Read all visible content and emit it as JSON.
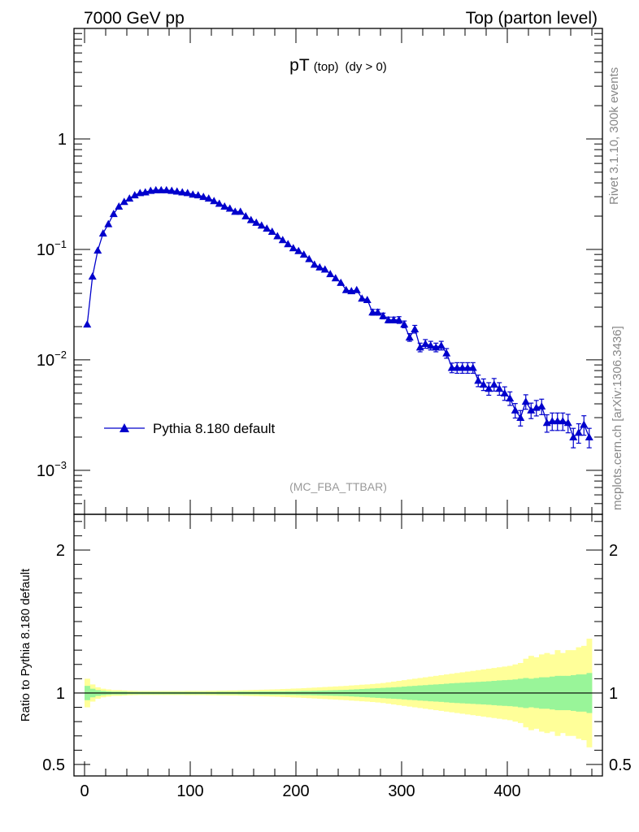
{
  "header": {
    "left": "7000 GeV pp",
    "right": "Top (parton level)"
  },
  "side_labels": {
    "rivet": "Rivet 3.1.10,  300k events",
    "mcplots": "mcplots.cern.ch [arXiv:1306.3436]"
  },
  "colors": {
    "series": "#0000cc",
    "band_inner": "#99f599",
    "band_outer": "#ffff99",
    "frame": "#000000",
    "side_text": "#888888"
  },
  "chart_data": [
    {
      "type": "line",
      "yscale": "log",
      "title": "pT",
      "title_sub": "(top)",
      "title_cut": "(dy > 0)",
      "watermark": "(MC_FBA_TTBAR)",
      "xlim": [
        -10,
        490
      ],
      "ylim": [
        0.0004,
        10
      ],
      "y_ticks": [
        {
          "value": 1,
          "base": "1",
          "exp": ""
        },
        {
          "value": 0.1,
          "base": "10",
          "exp": "−1"
        },
        {
          "value": 0.01,
          "base": "10",
          "exp": "−2"
        },
        {
          "value": 0.001,
          "base": "10",
          "exp": "−3"
        }
      ],
      "series": [
        {
          "name": "Pythia 8.180 default",
          "marker": "triangle",
          "x": [
            2.5,
            7.5,
            12.5,
            17.5,
            22.5,
            27.5,
            32.5,
            37.5,
            42.5,
            47.5,
            52.5,
            57.5,
            62.5,
            67.5,
            72.5,
            77.5,
            82.5,
            87.5,
            92.5,
            97.5,
            102.5,
            107.5,
            112.5,
            117.5,
            122.5,
            127.5,
            132.5,
            137.5,
            142.5,
            147.5,
            152.5,
            157.5,
            162.5,
            167.5,
            172.5,
            177.5,
            182.5,
            187.5,
            192.5,
            197.5,
            202.5,
            207.5,
            212.5,
            217.5,
            222.5,
            227.5,
            232.5,
            237.5,
            242.5,
            247.5,
            252.5,
            257.5,
            262.5,
            267.5,
            272.5,
            277.5,
            282.5,
            287.5,
            292.5,
            297.5,
            302.5,
            307.5,
            312.5,
            317.5,
            322.5,
            327.5,
            332.5,
            337.5,
            342.5,
            347.5,
            352.5,
            357.5,
            362.5,
            367.5,
            372.5,
            377.5,
            382.5,
            387.5,
            392.5,
            397.5,
            402.5,
            407.5,
            412.5,
            417.5,
            422.5,
            427.5,
            432.5,
            437.5,
            442.5,
            447.5,
            452.5,
            457.5,
            462.5,
            467.5,
            472.5,
            477.5
          ],
          "y": [
            0.021,
            0.057,
            0.098,
            0.14,
            0.17,
            0.21,
            0.245,
            0.27,
            0.29,
            0.31,
            0.325,
            0.33,
            0.34,
            0.345,
            0.345,
            0.345,
            0.34,
            0.335,
            0.33,
            0.325,
            0.315,
            0.31,
            0.3,
            0.29,
            0.275,
            0.26,
            0.245,
            0.235,
            0.22,
            0.22,
            0.2,
            0.185,
            0.175,
            0.165,
            0.155,
            0.145,
            0.132,
            0.122,
            0.112,
            0.103,
            0.097,
            0.09,
            0.082,
            0.073,
            0.069,
            0.066,
            0.06,
            0.055,
            0.05,
            0.043,
            0.042,
            0.043,
            0.036,
            0.035,
            0.027,
            0.027,
            0.025,
            0.023,
            0.023,
            0.023,
            0.021,
            0.016,
            0.019,
            0.013,
            0.014,
            0.0135,
            0.013,
            0.0135,
            0.0115,
            0.0085,
            0.0085,
            0.0085,
            0.0085,
            0.0085,
            0.0065,
            0.006,
            0.0055,
            0.006,
            0.0055,
            0.005,
            0.0045,
            0.0035,
            0.003,
            0.0042,
            0.0035,
            0.0037,
            0.0038,
            0.0027,
            0.0028,
            0.0028,
            0.0028,
            0.0027,
            0.002,
            0.0022,
            0.0026,
            0.002
          ],
          "yerr_rel": [
            0.02,
            0.02,
            0.02,
            0.02,
            0.02,
            0.02,
            0.02,
            0.02,
            0.02,
            0.02,
            0.02,
            0.02,
            0.02,
            0.02,
            0.02,
            0.02,
            0.02,
            0.02,
            0.02,
            0.02,
            0.02,
            0.02,
            0.02,
            0.02,
            0.02,
            0.02,
            0.02,
            0.02,
            0.02,
            0.02,
            0.03,
            0.03,
            0.03,
            0.03,
            0.03,
            0.03,
            0.03,
            0.03,
            0.03,
            0.03,
            0.03,
            0.03,
            0.03,
            0.04,
            0.04,
            0.04,
            0.04,
            0.04,
            0.04,
            0.05,
            0.05,
            0.05,
            0.05,
            0.05,
            0.06,
            0.06,
            0.06,
            0.06,
            0.06,
            0.07,
            0.07,
            0.08,
            0.08,
            0.09,
            0.09,
            0.09,
            0.09,
            0.09,
            0.1,
            0.1,
            0.11,
            0.11,
            0.11,
            0.11,
            0.12,
            0.12,
            0.13,
            0.13,
            0.13,
            0.14,
            0.14,
            0.15,
            0.16,
            0.15,
            0.16,
            0.16,
            0.16,
            0.18,
            0.18,
            0.18,
            0.18,
            0.19,
            0.2,
            0.2,
            0.2,
            0.2
          ]
        }
      ]
    },
    {
      "type": "area",
      "ylabel": "Ratio to Pythia 8.180 default",
      "xlim": [
        -10,
        490
      ],
      "ylim": [
        0.42,
        2.25
      ],
      "x_ticks": [
        0,
        100,
        200,
        300,
        400
      ],
      "y_ticks": [
        0.5,
        1,
        2
      ],
      "y_tick_labels": [
        "0.5",
        "1",
        "2"
      ],
      "reference_line": 1,
      "bands": {
        "x_edges_step": 5,
        "inner_half_width": [
          0.05,
          0.03,
          0.02,
          0.015,
          0.012,
          0.01,
          0.01,
          0.01,
          0.008,
          0.008,
          0.008,
          0.008,
          0.008,
          0.008,
          0.008,
          0.008,
          0.008,
          0.008,
          0.008,
          0.008,
          0.008,
          0.008,
          0.008,
          0.008,
          0.008,
          0.009,
          0.009,
          0.009,
          0.009,
          0.01,
          0.01,
          0.01,
          0.01,
          0.011,
          0.011,
          0.012,
          0.012,
          0.012,
          0.013,
          0.013,
          0.014,
          0.015,
          0.015,
          0.016,
          0.017,
          0.018,
          0.019,
          0.02,
          0.021,
          0.022,
          0.024,
          0.026,
          0.028,
          0.03,
          0.032,
          0.034,
          0.036,
          0.038,
          0.04,
          0.042,
          0.045,
          0.048,
          0.05,
          0.053,
          0.055,
          0.058,
          0.06,
          0.062,
          0.065,
          0.068,
          0.07,
          0.072,
          0.074,
          0.076,
          0.078,
          0.08,
          0.082,
          0.085,
          0.088,
          0.09,
          0.092,
          0.095,
          0.1,
          0.105,
          0.1,
          0.105,
          0.11,
          0.11,
          0.115,
          0.12,
          0.12,
          0.12,
          0.125,
          0.13,
          0.13,
          0.14
        ],
        "outer_half_width": [
          0.1,
          0.06,
          0.04,
          0.03,
          0.025,
          0.02,
          0.02,
          0.018,
          0.016,
          0.015,
          0.014,
          0.014,
          0.014,
          0.014,
          0.014,
          0.014,
          0.014,
          0.014,
          0.014,
          0.015,
          0.015,
          0.015,
          0.015,
          0.016,
          0.016,
          0.017,
          0.017,
          0.018,
          0.018,
          0.019,
          0.02,
          0.021,
          0.022,
          0.023,
          0.024,
          0.025,
          0.026,
          0.028,
          0.029,
          0.031,
          0.032,
          0.034,
          0.036,
          0.038,
          0.04,
          0.042,
          0.044,
          0.046,
          0.048,
          0.05,
          0.053,
          0.055,
          0.058,
          0.06,
          0.063,
          0.066,
          0.07,
          0.075,
          0.08,
          0.085,
          0.09,
          0.095,
          0.1,
          0.105,
          0.11,
          0.115,
          0.12,
          0.125,
          0.13,
          0.135,
          0.14,
          0.145,
          0.15,
          0.155,
          0.16,
          0.165,
          0.17,
          0.175,
          0.18,
          0.185,
          0.19,
          0.2,
          0.21,
          0.24,
          0.26,
          0.25,
          0.27,
          0.28,
          0.27,
          0.3,
          0.28,
          0.3,
          0.3,
          0.32,
          0.33,
          0.38
        ]
      }
    }
  ]
}
